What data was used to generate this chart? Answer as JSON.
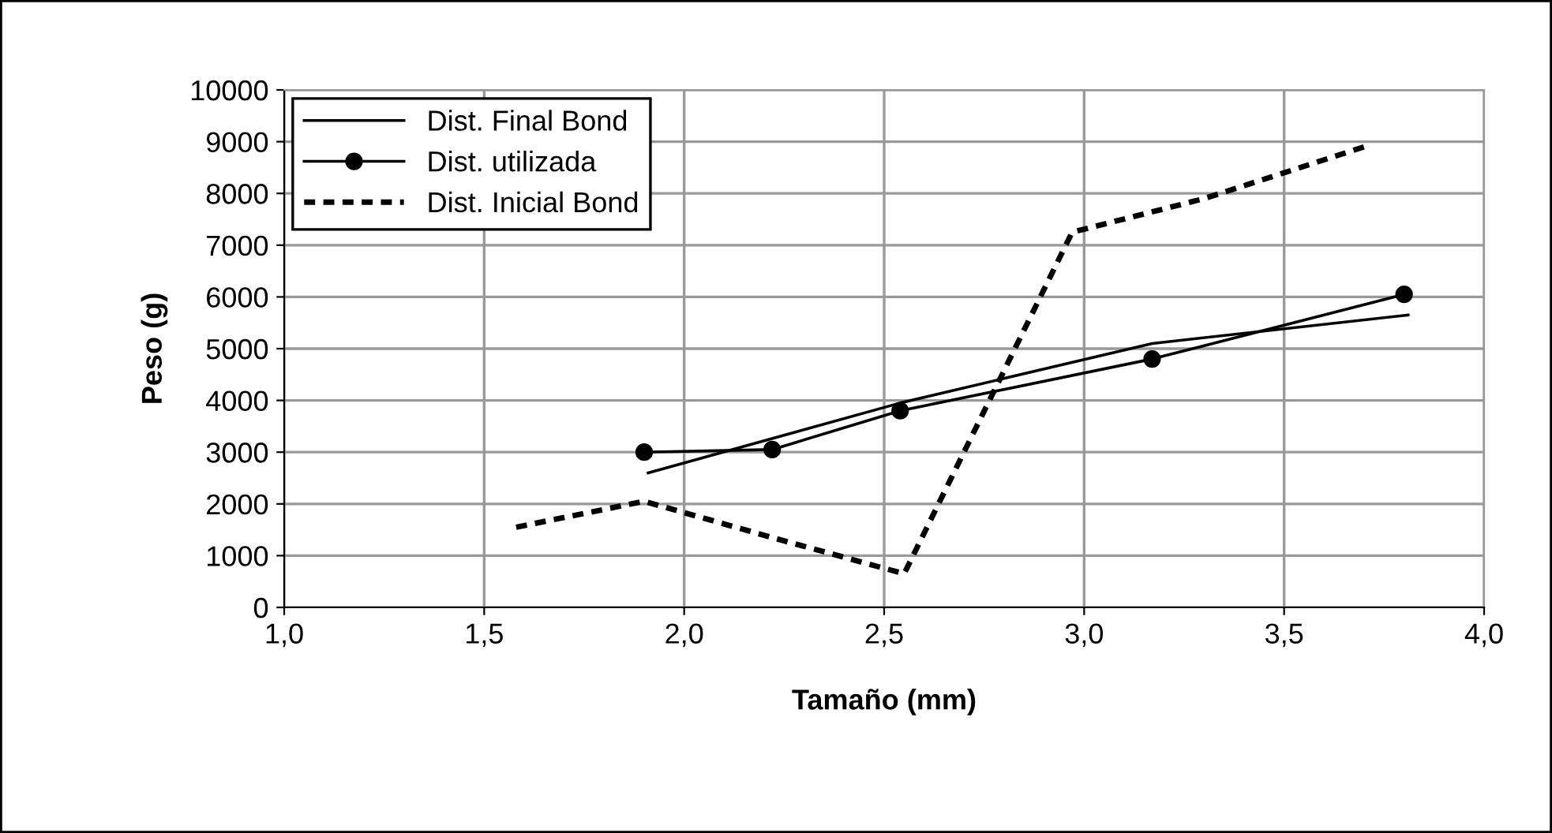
{
  "chart_data": {
    "type": "line",
    "xlabel": "Tamaño (mm)",
    "ylabel": "Peso (g)",
    "xlim": [
      1.0,
      4.0
    ],
    "xticks": [
      {
        "value": 1.0,
        "label": "1,0"
      },
      {
        "value": 1.5,
        "label": "1,5"
      },
      {
        "value": 2.0,
        "label": "2,0"
      },
      {
        "value": 2.5,
        "label": "2,5"
      },
      {
        "value": 3.0,
        "label": "3,0"
      },
      {
        "value": 3.5,
        "label": "3,5"
      },
      {
        "value": 4.0,
        "label": "4,0"
      }
    ],
    "ylim": [
      0,
      10000
    ],
    "yticks": [
      0,
      1000,
      2000,
      3000,
      4000,
      5000,
      6000,
      7000,
      8000,
      9000,
      10000
    ],
    "grid": true,
    "legend": "top left",
    "series": [
      {
        "name": "Dist. Final Bond",
        "color": "#000000",
        "marker": "none",
        "line_style": "solid",
        "x": [
          1.91,
          2.54,
          3.17,
          3.81
        ],
        "values": [
          2600,
          3950,
          5100,
          5650
        ]
      },
      {
        "name": "Dist. utilizada",
        "color": "#000000",
        "marker": "circle",
        "line_style": "solid",
        "x": [
          1.9,
          2.22,
          2.54,
          3.17,
          3.8
        ],
        "values": [
          3000,
          3050,
          3800,
          4800,
          6050
        ]
      },
      {
        "name": "Dist. Inicial Bond",
        "color": "#000000",
        "marker": "none",
        "line_style": "dashed",
        "x": [
          1.58,
          1.9,
          2.22,
          2.55,
          2.97,
          3.3,
          3.7
        ],
        "values": [
          1550,
          2050,
          1350,
          650,
          7250,
          7900,
          8900
        ]
      }
    ]
  }
}
